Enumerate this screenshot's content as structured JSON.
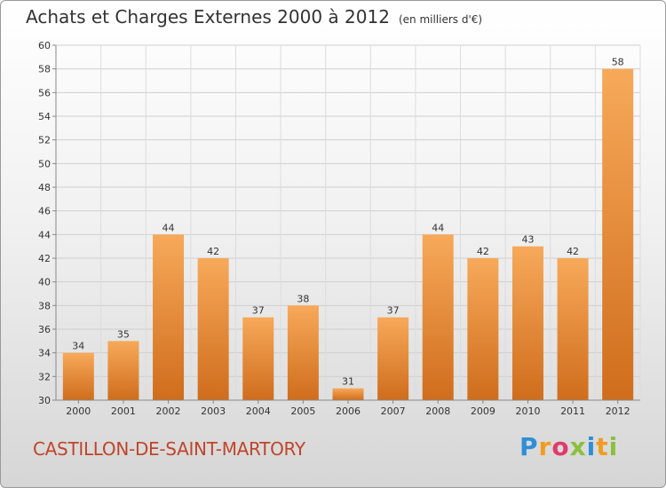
{
  "title": "Achats et Charges Externes 2000 à 2012",
  "subtitle": "(en milliers d'€)",
  "commune": "CASTILLON-DE-SAINT-MARTORY",
  "brand": {
    "text": "Proxiti",
    "letters": [
      {
        "char": "P",
        "color": "#2f8fd6"
      },
      {
        "char": "r",
        "color": "#f29c1f"
      },
      {
        "char": "o",
        "color": "#e03b6b"
      },
      {
        "char": "x",
        "color": "#8bc03c"
      },
      {
        "char": "i",
        "color": "#2f8fd6"
      },
      {
        "char": "t",
        "color": "#f29c1f"
      },
      {
        "char": "i",
        "color": "#8bc03c"
      }
    ]
  },
  "chart_data": {
    "type": "bar",
    "title": "Achats et Charges Externes 2000 à 2012",
    "categories": [
      "2000",
      "2001",
      "2002",
      "2003",
      "2004",
      "2005",
      "2006",
      "2007",
      "2008",
      "2009",
      "2010",
      "2011",
      "2012"
    ],
    "values": [
      34,
      35,
      44,
      42,
      37,
      38,
      31,
      37,
      44,
      42,
      43,
      42,
      58
    ],
    "ylim": [
      30,
      60
    ],
    "yticks": [
      30,
      32,
      34,
      36,
      38,
      40,
      42,
      44,
      46,
      48,
      50,
      52,
      54,
      56,
      58,
      60
    ],
    "grid": true,
    "data_labels": true,
    "bar_color_top": "#f7a95a",
    "bar_color_bottom": "#cf6d1c"
  }
}
